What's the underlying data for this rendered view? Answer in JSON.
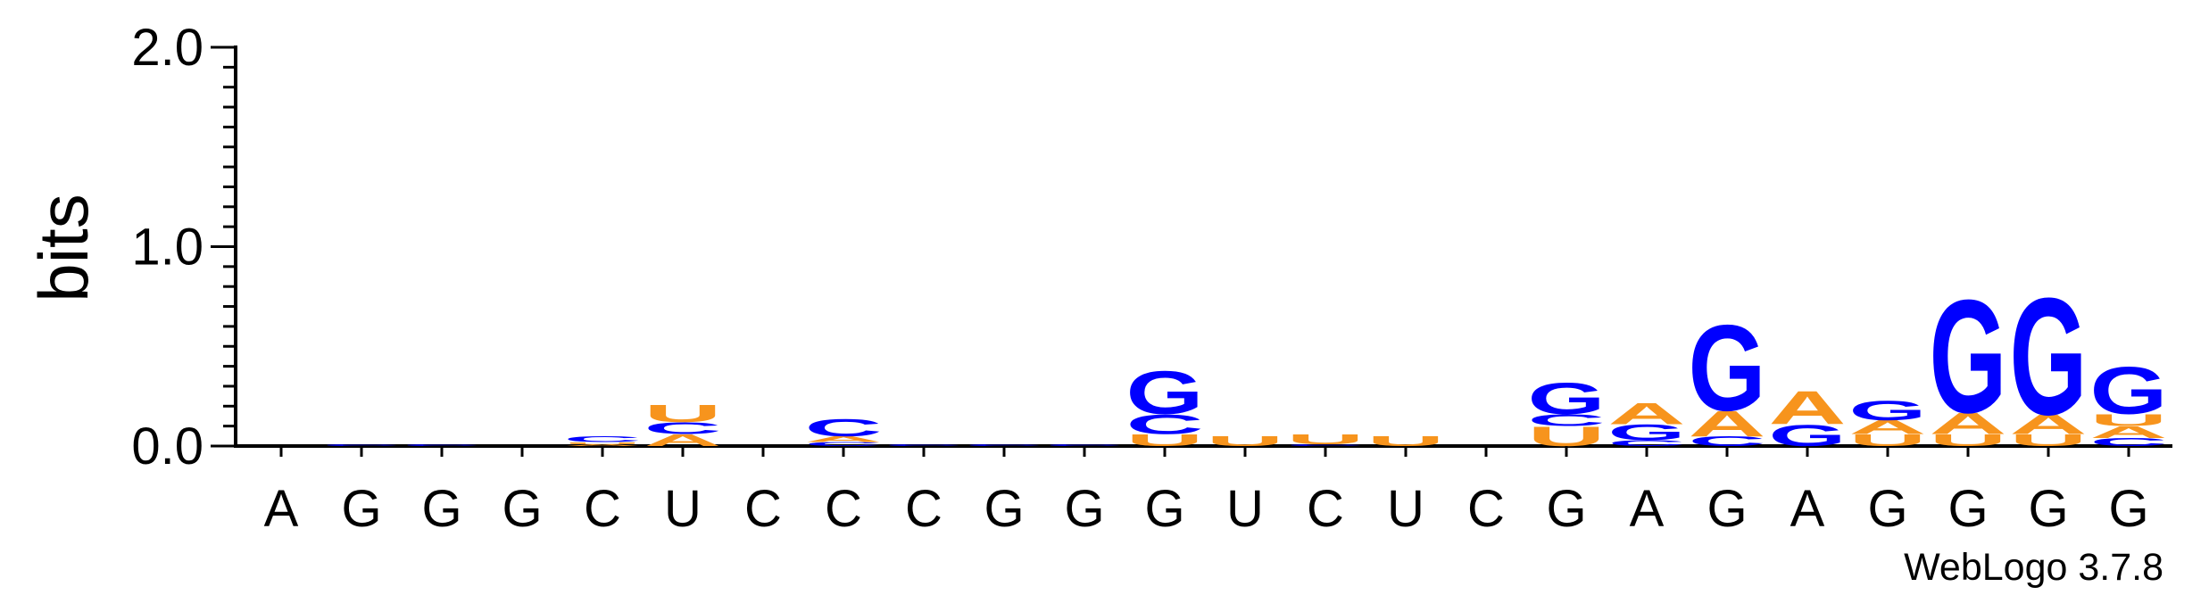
{
  "chart_data": {
    "type": "sequence-logo",
    "ylabel": "bits",
    "ylim": [
      0,
      2.0
    ],
    "yticks": [
      "0.0",
      "1.0",
      "2.0"
    ],
    "colors": {
      "A": "#f7941d",
      "C": "#0000ff",
      "G": "#0000ff",
      "U": "#f7941d"
    },
    "positions": [
      {
        "label": "A",
        "stack": []
      },
      {
        "label": "G",
        "stack": [
          {
            "letter": "C",
            "height": 0.01
          }
        ]
      },
      {
        "label": "G",
        "stack": [
          {
            "letter": "C",
            "height": 0.01
          }
        ]
      },
      {
        "label": "G",
        "stack": []
      },
      {
        "label": "C",
        "stack": [
          {
            "letter": "A",
            "height": 0.01
          },
          {
            "letter": "U",
            "height": 0.01
          },
          {
            "letter": "C",
            "height": 0.03
          }
        ]
      },
      {
        "label": "U",
        "stack": [
          {
            "letter": "A",
            "height": 0.06
          },
          {
            "letter": "C",
            "height": 0.06
          },
          {
            "letter": "U",
            "height": 0.09
          }
        ]
      },
      {
        "label": "C",
        "stack": []
      },
      {
        "label": "C",
        "stack": [
          {
            "letter": "C",
            "height": 0.02
          },
          {
            "letter": "A",
            "height": 0.03
          },
          {
            "letter": "C",
            "height": 0.09
          }
        ]
      },
      {
        "label": "C",
        "stack": [
          {
            "letter": "C",
            "height": 0.01
          }
        ]
      },
      {
        "label": "G",
        "stack": [
          {
            "letter": "C",
            "height": 0.01
          }
        ]
      },
      {
        "label": "G",
        "stack": [
          {
            "letter": "C",
            "height": 0.01
          }
        ]
      },
      {
        "label": "G",
        "stack": [
          {
            "letter": "U",
            "height": 0.06
          },
          {
            "letter": "C",
            "height": 0.1
          },
          {
            "letter": "G",
            "height": 0.22
          }
        ]
      },
      {
        "label": "U",
        "stack": [
          {
            "letter": "U",
            "height": 0.05
          }
        ]
      },
      {
        "label": "C",
        "stack": [
          {
            "letter": "C",
            "height": 0.01
          },
          {
            "letter": "U",
            "height": 0.05
          }
        ]
      },
      {
        "label": "U",
        "stack": [
          {
            "letter": "U",
            "height": 0.05
          }
        ]
      },
      {
        "label": "C",
        "stack": []
      },
      {
        "label": "G",
        "stack": [
          {
            "letter": "U",
            "height": 0.1
          },
          {
            "letter": "C",
            "height": 0.06
          },
          {
            "letter": "G",
            "height": 0.16
          }
        ]
      },
      {
        "label": "A",
        "stack": [
          {
            "letter": "C",
            "height": 0.03
          },
          {
            "letter": "G",
            "height": 0.08
          },
          {
            "letter": "A",
            "height": 0.11
          }
        ]
      },
      {
        "label": "G",
        "stack": [
          {
            "letter": "C",
            "height": 0.05
          },
          {
            "letter": "A",
            "height": 0.13
          },
          {
            "letter": "G",
            "height": 0.44
          }
        ]
      },
      {
        "label": "A",
        "stack": [
          {
            "letter": "G",
            "height": 0.11
          },
          {
            "letter": "A",
            "height": 0.17
          }
        ]
      },
      {
        "label": "G",
        "stack": [
          {
            "letter": "U",
            "height": 0.06
          },
          {
            "letter": "A",
            "height": 0.07
          },
          {
            "letter": "G",
            "height": 0.1
          }
        ]
      },
      {
        "label": "G",
        "stack": [
          {
            "letter": "U",
            "height": 0.06
          },
          {
            "letter": "A",
            "height": 0.11
          },
          {
            "letter": "G",
            "height": 0.58
          }
        ]
      },
      {
        "label": "G",
        "stack": [
          {
            "letter": "U",
            "height": 0.06
          },
          {
            "letter": "A",
            "height": 0.1
          },
          {
            "letter": "G",
            "height": 0.6
          }
        ]
      },
      {
        "label": "G",
        "stack": [
          {
            "letter": "C",
            "height": 0.04
          },
          {
            "letter": "A",
            "height": 0.06
          },
          {
            "letter": "U",
            "height": 0.06
          },
          {
            "letter": "G",
            "height": 0.24
          }
        ]
      }
    ]
  },
  "credit": "WebLogo 3.7.8"
}
